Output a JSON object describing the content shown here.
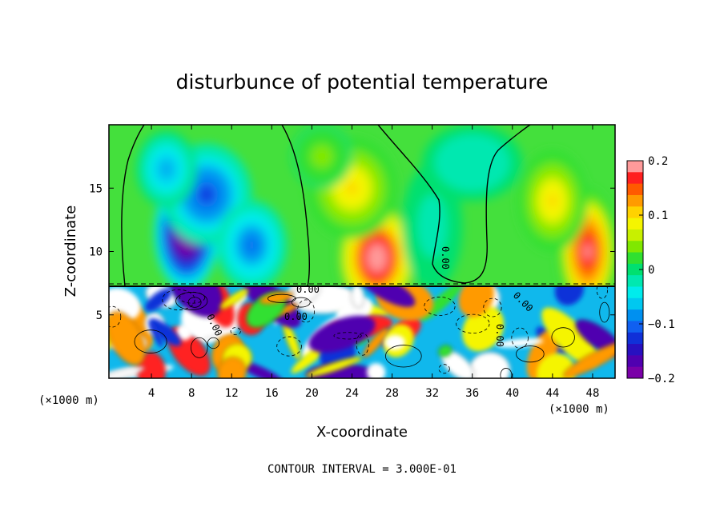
{
  "chart_data": {
    "type": "heatmap",
    "title": "disturbunce of potential temperature",
    "xlabel": "X-coordinate",
    "ylabel": "Z-coordinate",
    "x_unit_left": "(×1000 m)",
    "x_unit_right": "(×1000 m)",
    "note": "CONTOUR INTERVAL = 3.000E-01",
    "xlim": [
      0,
      50
    ],
    "ylim": [
      0,
      20
    ],
    "x_ticks": [
      4,
      8,
      12,
      16,
      20,
      24,
      28,
      32,
      36,
      40,
      44,
      48
    ],
    "y_ticks": [
      5,
      10,
      15
    ],
    "colorbar": {
      "range": [
        -0.2,
        0.2
      ],
      "tick_values": [
        0.2,
        0.1,
        0,
        -0.1,
        -0.2
      ],
      "tick_labels": [
        "0.2",
        "0.1",
        "0",
        "−0.1",
        "−0.2"
      ],
      "colors": [
        "#ff9a9a",
        "#ff2020",
        "#ff5a00",
        "#ff9a00",
        "#ffd200",
        "#f5f500",
        "#c8f000",
        "#80e800",
        "#30e030",
        "#00e070",
        "#00e8b0",
        "#00ecec",
        "#00c8f0",
        "#0090f0",
        "#1060f0",
        "#1030d8",
        "#2810c0",
        "#5000b0",
        "#7a00a8"
      ]
    },
    "contour_labels": [
      "0.00",
      "0.00",
      "0.00",
      "0.00",
      "0.00",
      "0.00"
    ],
    "blobs": [
      {
        "x": 7.5,
        "z": 11.5,
        "rx": 3.2,
        "rz": 4.5,
        "v": -0.26
      },
      {
        "x": 9.5,
        "z": 14.5,
        "rx": 4.5,
        "rz": 4.0,
        "v": -0.12
      },
      {
        "x": 5.5,
        "z": 16.5,
        "rx": 3.0,
        "rz": 3.0,
        "v": -0.08
      },
      {
        "x": 14.0,
        "z": 10.5,
        "rx": 3.5,
        "rz": 3.5,
        "v": -0.1
      },
      {
        "x": 26.5,
        "z": 9.5,
        "rx": 4.0,
        "rz": 4.5,
        "v": 0.22
      },
      {
        "x": 24.0,
        "z": 15.0,
        "rx": 4.5,
        "rz": 4.0,
        "v": 0.1
      },
      {
        "x": 21.0,
        "z": 17.5,
        "rx": 3.0,
        "rz": 2.5,
        "v": 0.05
      },
      {
        "x": 47.5,
        "z": 10.0,
        "rx": 3.0,
        "rz": 5.0,
        "v": 0.2
      },
      {
        "x": 44.0,
        "z": 14.0,
        "rx": 3.5,
        "rz": 4.0,
        "v": 0.1
      },
      {
        "x": 32.0,
        "z": 12.0,
        "rx": 3.0,
        "rz": 5.0,
        "v": -0.02
      },
      {
        "x": 36.0,
        "z": 17.0,
        "rx": 5.0,
        "rz": 3.0,
        "v": -0.03
      }
    ]
  }
}
